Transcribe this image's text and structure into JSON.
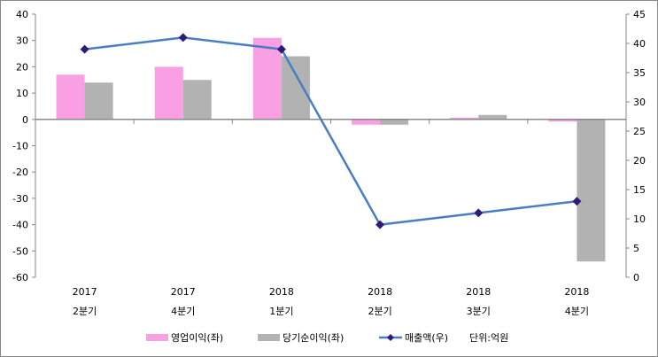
{
  "chart_data": {
    "type": "bar+line",
    "categories": [
      [
        "2017",
        "2분기"
      ],
      [
        "2017",
        "4분기"
      ],
      [
        "2018",
        "1분기"
      ],
      [
        "2018",
        "2분기"
      ],
      [
        "2018",
        "3분기"
      ],
      [
        "2018",
        "4분기"
      ]
    ],
    "series": [
      {
        "name": "영업이익(좌)",
        "type": "bar",
        "axis": "left",
        "color": "#f99fe3",
        "values": [
          17,
          20,
          31,
          -2,
          0.7,
          -0.8
        ]
      },
      {
        "name": "당기순이익(좌)",
        "type": "bar",
        "axis": "left",
        "color": "#b2b2b2",
        "values": [
          14,
          15,
          24,
          -2,
          1.7,
          -54
        ]
      },
      {
        "name": "매출액(우)",
        "type": "line",
        "axis": "right",
        "color": "#4a7ec2",
        "marker_color": "#2e1a7a",
        "values": [
          39,
          41,
          39,
          9,
          11,
          13
        ]
      }
    ],
    "left_axis": {
      "range": [
        -60,
        40
      ],
      "ticks": [
        40,
        30,
        20,
        10,
        0,
        -10,
        -20,
        -30,
        -40,
        -50,
        -60
      ]
    },
    "right_axis": {
      "range": [
        0,
        45
      ],
      "ticks": [
        45,
        40,
        35,
        30,
        25,
        20,
        15,
        10,
        5,
        0
      ]
    },
    "legend_position": "bottom",
    "unit_note": "단위:억원"
  }
}
